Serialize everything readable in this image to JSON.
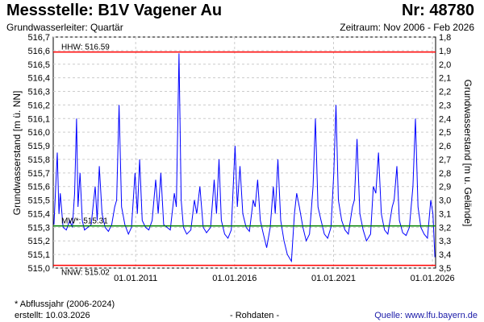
{
  "header": {
    "title": "Messstelle: B1V Vagener Au",
    "nr": "Nr: 48780",
    "aquifer": "Grundwasserleiter: Quartär",
    "period": "Zeitraum: Nov 2006 - Feb 2026"
  },
  "footer": {
    "note": "* Abflussjahr (2006-2024)",
    "created": "erstellt:  10.03.2026",
    "raw": "- Rohdaten -",
    "source": "Quelle: www.lfu.bayern.de"
  },
  "colors": {
    "series": "#0000ff",
    "extreme": "#ff0000",
    "mean": "#008000",
    "grid": "#cccccc"
  },
  "chart_data": {
    "type": "line",
    "title": "",
    "ylabel": "Grundwasserstand [m ü. NN]",
    "ylabel_right": "Grundwasserstand [m u. Gelände]",
    "xlim": [
      "2006-11-01",
      "2026-02-28"
    ],
    "ylim": [
      515.0,
      516.7
    ],
    "ylim_right": [
      3.5,
      1.8
    ],
    "grid": true,
    "x_ticks": [
      "01.01.2011",
      "01.01.2016",
      "01.01.2021",
      "01.01.2026"
    ],
    "y_ticks": [
      "515,0",
      "515,1",
      "515,2",
      "515,3",
      "515,4",
      "515,5",
      "515,6",
      "515,7",
      "515,8",
      "515,9",
      "516,0",
      "516,1",
      "516,2",
      "516,3",
      "516,4",
      "516,5",
      "516,6",
      "516,7"
    ],
    "y_ticks_right": [
      "3,5",
      "3,4",
      "3,3",
      "3,2",
      "3,1",
      "3,0",
      "2,9",
      "2,8",
      "2,7",
      "2,6",
      "2,5",
      "2,4",
      "2,3",
      "2,2",
      "2,1",
      "2,0",
      "1,9",
      "1,8"
    ],
    "reference_lines": [
      {
        "label": "HHW: 516.59",
        "value": 516.59,
        "kind": "extreme"
      },
      {
        "label": "MW*: 515.31",
        "value": 515.31,
        "kind": "mean"
      },
      {
        "label": "NNW: 515.02",
        "value": 515.02,
        "kind": "extreme"
      }
    ],
    "series": [
      {
        "x": [
          "2006-11-15",
          "2007-01-15",
          "2007-02-15",
          "2007-03-10",
          "2007-05-01",
          "2007-07-01",
          "2007-09-01",
          "2007-10-20",
          "2007-12-01",
          "2008-01-05",
          "2008-02-01",
          "2008-03-10",
          "2008-04-20",
          "2008-06-01",
          "2008-08-01",
          "2008-10-01",
          "2008-12-15",
          "2009-01-20",
          "2009-03-01",
          "2009-04-20",
          "2009-06-15",
          "2009-08-15",
          "2009-10-15",
          "2009-12-10",
          "2010-01-15",
          "2010-02-28",
          "2010-04-15",
          "2010-06-15",
          "2010-08-20",
          "2010-10-15",
          "2010-12-20",
          "2011-02-01",
          "2011-03-15",
          "2011-05-01",
          "2011-07-01",
          "2011-09-01",
          "2011-11-01",
          "2012-01-05",
          "2012-02-20",
          "2012-04-10",
          "2012-06-01",
          "2012-08-01",
          "2012-10-01",
          "2012-12-15",
          "2013-01-20",
          "2013-03-10",
          "2013-04-20",
          "2013-06-01",
          "2013-08-01",
          "2013-10-15",
          "2013-12-20",
          "2014-02-01",
          "2014-04-01",
          "2014-06-01",
          "2014-08-01",
          "2014-10-15",
          "2014-12-20",
          "2015-02-01",
          "2015-03-20",
          "2015-05-01",
          "2015-07-01",
          "2015-09-01",
          "2015-11-01",
          "2016-01-10",
          "2016-02-20",
          "2016-04-10",
          "2016-06-01",
          "2016-08-01",
          "2016-10-01",
          "2016-12-10",
          "2017-01-15",
          "2017-03-01",
          "2017-04-20",
          "2017-06-15",
          "2017-08-15",
          "2017-10-20",
          "2017-12-15",
          "2018-01-20",
          "2018-03-10",
          "2018-05-01",
          "2018-07-01",
          "2018-09-01",
          "2018-11-15",
          "2019-01-10",
          "2019-02-20",
          "2019-04-10",
          "2019-06-15",
          "2019-08-15",
          "2019-10-15",
          "2019-12-20",
          "2020-02-01",
          "2020-03-20",
          "2020-05-15",
          "2020-07-15",
          "2020-09-15",
          "2020-11-15",
          "2021-01-05",
          "2021-02-15",
          "2021-04-01",
          "2021-06-01",
          "2021-08-01",
          "2021-10-01",
          "2021-12-15",
          "2022-01-20",
          "2022-03-10",
          "2022-05-01",
          "2022-07-01",
          "2022-09-01",
          "2022-11-15",
          "2023-01-05",
          "2023-02-20",
          "2023-04-10",
          "2023-06-01",
          "2023-08-01",
          "2023-10-01",
          "2023-12-20",
          "2024-01-25",
          "2024-03-15",
          "2024-05-01",
          "2024-07-01",
          "2024-09-01",
          "2024-11-01",
          "2025-01-05",
          "2025-02-20",
          "2025-04-10",
          "2025-06-01",
          "2025-08-01",
          "2025-10-01",
          "2025-12-01",
          "2026-01-10",
          "2026-02-15"
        ],
        "values": [
          515.32,
          515.85,
          515.4,
          515.55,
          515.3,
          515.28,
          515.35,
          515.3,
          515.55,
          516.1,
          515.45,
          515.7,
          515.35,
          515.28,
          515.3,
          515.32,
          515.6,
          515.35,
          515.75,
          515.4,
          515.3,
          515.27,
          515.32,
          515.45,
          515.5,
          516.2,
          515.45,
          515.32,
          515.25,
          515.3,
          515.7,
          515.4,
          515.8,
          515.35,
          515.3,
          515.28,
          515.35,
          515.65,
          515.4,
          515.7,
          515.32,
          515.3,
          515.28,
          515.55,
          515.45,
          516.58,
          515.5,
          515.3,
          515.25,
          515.28,
          515.5,
          515.4,
          515.6,
          515.3,
          515.26,
          515.3,
          515.65,
          515.4,
          515.8,
          515.35,
          515.25,
          515.22,
          515.28,
          515.9,
          515.45,
          515.75,
          515.4,
          515.3,
          515.27,
          515.5,
          515.45,
          515.65,
          515.35,
          515.25,
          515.15,
          515.3,
          515.6,
          515.4,
          515.8,
          515.35,
          515.2,
          515.1,
          515.05,
          515.4,
          515.55,
          515.45,
          515.3,
          515.2,
          515.25,
          515.6,
          516.1,
          515.45,
          515.35,
          515.25,
          515.22,
          515.3,
          515.7,
          516.2,
          515.5,
          515.35,
          515.28,
          515.25,
          515.45,
          515.5,
          515.95,
          515.4,
          515.28,
          515.2,
          515.25,
          515.6,
          515.55,
          515.85,
          515.4,
          515.28,
          515.25,
          515.45,
          515.5,
          515.75,
          515.35,
          515.26,
          515.24,
          515.3,
          515.6,
          516.1,
          515.45,
          515.3,
          515.25,
          515.22,
          515.5,
          515.4,
          515.08
        ]
      }
    ]
  }
}
